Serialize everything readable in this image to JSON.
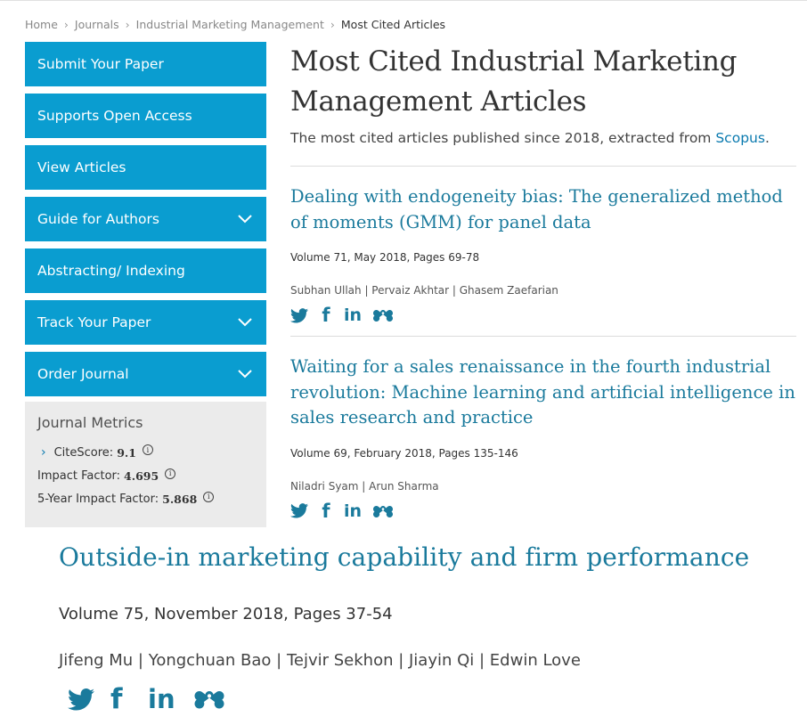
{
  "breadcrumb": {
    "items": [
      "Home",
      "Journals",
      "Industrial Marketing Management"
    ],
    "current": "Most Cited Articles"
  },
  "sidebar": {
    "items": [
      {
        "label": "Submit Your Paper"
      },
      {
        "label": "Supports Open Access"
      },
      {
        "label": "View Articles"
      },
      {
        "label": "Guide for Authors"
      },
      {
        "label": "Abstracting/ Indexing"
      },
      {
        "label": "Track Your Paper"
      },
      {
        "label": "Order Journal"
      }
    ]
  },
  "metrics": {
    "title": "Journal Metrics",
    "citescore_label": "CiteScore:",
    "citescore_value": "9.1",
    "impact_label": "Impact Factor:",
    "impact_value": "4.695",
    "five_year_label": "5-Year Impact Factor:",
    "five_year_value": "5.868"
  },
  "main": {
    "title_line1": "Most Cited Industrial Marketing",
    "title_line2": "Management Articles",
    "intro_text": "The most cited articles published since 2018, extracted from ",
    "intro_link": "Scopus",
    "intro_end": "."
  },
  "articles": [
    {
      "title": "Dealing with endogeneity bias: The generalized method of moments (GMM) for panel data",
      "volume": "Volume 71, May 2018, Pages 69-78",
      "authors": "Subhan Ullah | Pervaiz Akhtar | Ghasem Zaefarian"
    },
    {
      "title": "Waiting for a sales renaissance in the fourth industrial revolution: Machine learning and artificial intelligence in sales research and practice",
      "volume": "Volume 69, February 2018, Pages 135-146",
      "authors": "Niladri Syam | Arun Sharma"
    }
  ],
  "zoomed_article": {
    "title": "Outside-in marketing capability and firm performance",
    "volume": "Volume 75, November 2018, Pages 37-54",
    "authors": "Jifeng Mu | Yongchuan Bao | Tejvir Sekhon | Jiayin Qi | Edwin Love"
  },
  "social_icons": [
    "twitter-icon",
    "facebook-icon",
    "linkedin-icon",
    "mendeley-icon"
  ],
  "social_glyphs": {
    "facebook": "f",
    "linkedin": "in"
  },
  "colors": {
    "sidebar_blue": "#0a9dd0",
    "link_teal": "#1a7a9c",
    "metrics_bg": "#ebebeb"
  }
}
